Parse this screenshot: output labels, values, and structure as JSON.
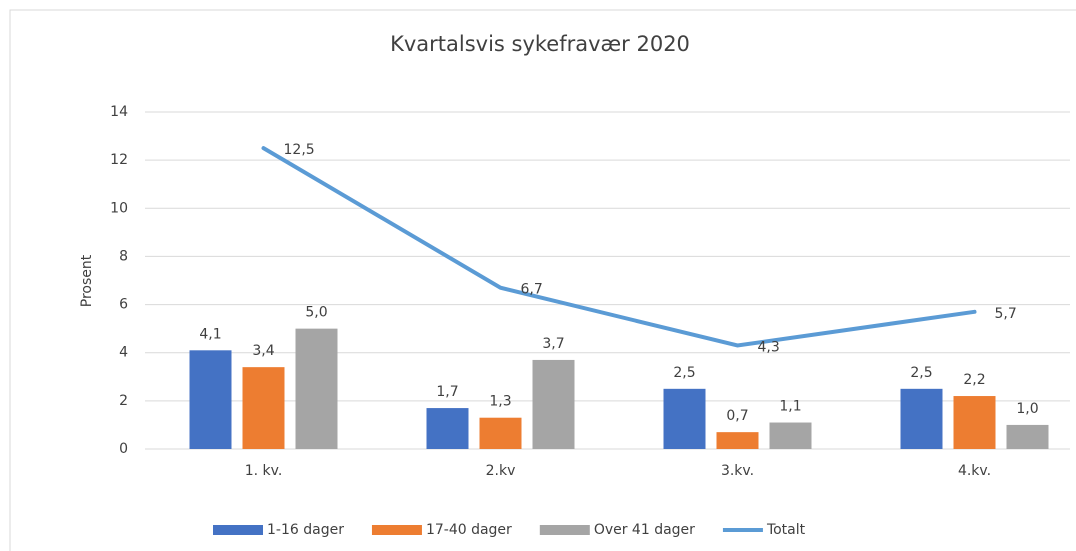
{
  "chart_data": {
    "type": "bar",
    "title": "Kvartalsvis sykefravær 2020",
    "y_label": "Prosent",
    "categories": [
      "1. kv.",
      "2.kv",
      "3.kv.",
      "4.kv."
    ],
    "series": [
      {
        "name": "1-16 dager",
        "color": "#4472c4",
        "type": "bar",
        "values": [
          4.1,
          1.7,
          2.5,
          2.5
        ],
        "value_labels": [
          "4,1",
          "1,7",
          "2,5",
          "2,5"
        ]
      },
      {
        "name": "17-40 dager",
        "color": "#ed7d31",
        "type": "bar",
        "values": [
          3.4,
          1.3,
          0.7,
          2.2
        ],
        "value_labels": [
          "3,4",
          "1,3",
          "0,7",
          "2,2"
        ]
      },
      {
        "name": "Over 41 dager",
        "color": "#a5a5a5",
        "type": "bar",
        "values": [
          5.0,
          3.7,
          1.1,
          1.0
        ],
        "value_labels": [
          "5,0",
          "3,7",
          "1,1",
          "1,0"
        ]
      },
      {
        "name": "Totalt",
        "color": "#5b9bd5",
        "type": "line",
        "values": [
          12.5,
          6.7,
          4.3,
          5.7
        ],
        "value_labels": [
          "12,5",
          "6,7",
          "4,3",
          "5,7"
        ]
      }
    ],
    "ylim": [
      0,
      14
    ],
    "yticks": [
      0,
      2,
      4,
      6,
      8,
      10,
      12,
      14
    ],
    "grid": true,
    "legend": "bottom"
  }
}
